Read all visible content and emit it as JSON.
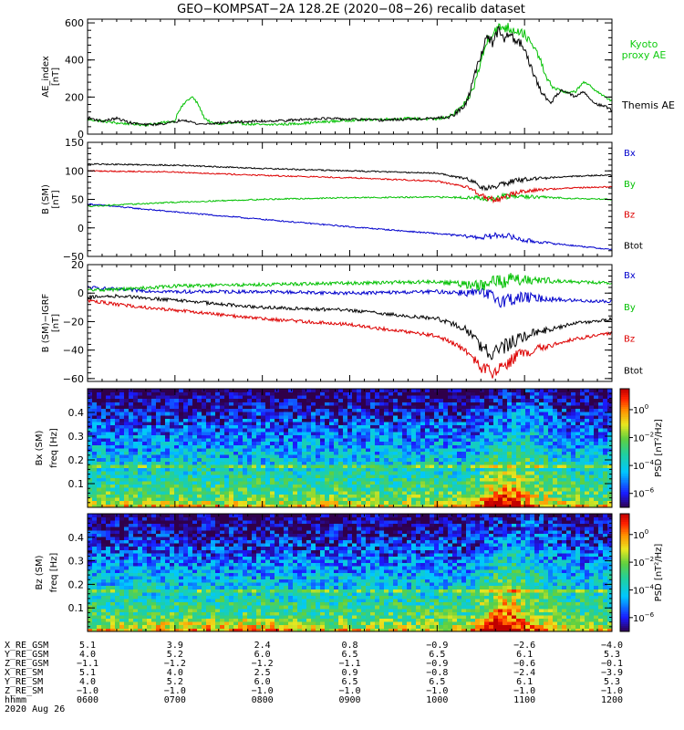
{
  "title": "GEO−KOMPSAT−2A 128.2E (2020−08−26) recalib dataset",
  "colors": {
    "black": "#000000",
    "blue": "#0000cc",
    "green": "#00c000",
    "red": "#dd0000",
    "kyoto": "#11cc11",
    "ephem": "#000000"
  },
  "chart_data": [
    {
      "type": "line",
      "title": "AE index",
      "ylabel": "AE_index [nT]",
      "ylim": [
        0,
        620
      ],
      "yticks": [
        0,
        200,
        400,
        600
      ],
      "xlim": [
        0,
        360
      ],
      "series": [
        {
          "name": "Kyoto proxy AE",
          "label": "Kyoto",
          "label2": "proxy AE",
          "color": "green",
          "x": [
            0,
            10,
            20,
            30,
            40,
            50,
            60,
            62,
            68,
            72,
            76,
            80,
            85,
            90,
            100,
            120,
            140,
            160,
            180,
            200,
            220,
            240,
            250,
            260,
            265,
            270,
            275,
            280,
            285,
            290,
            295,
            300,
            305,
            310,
            315,
            320,
            330,
            335,
            340,
            345,
            350,
            355,
            360
          ],
          "y": [
            80,
            70,
            60,
            55,
            50,
            60,
            70,
            120,
            180,
            200,
            160,
            90,
            60,
            55,
            60,
            50,
            55,
            65,
            75,
            80,
            85,
            80,
            100,
            170,
            250,
            390,
            520,
            560,
            580,
            570,
            560,
            540,
            480,
            420,
            300,
            250,
            220,
            230,
            280,
            260,
            230,
            200,
            180
          ]
        },
        {
          "name": "Themis AE",
          "label": "Themis AE",
          "color": "black",
          "x": [
            0,
            10,
            20,
            30,
            40,
            50,
            60,
            65,
            70,
            75,
            80,
            90,
            100,
            120,
            140,
            160,
            180,
            200,
            220,
            240,
            250,
            260,
            265,
            270,
            275,
            278,
            282,
            285,
            290,
            295,
            300,
            305,
            310,
            315,
            318,
            322,
            325,
            330,
            335,
            340,
            345,
            350,
            355,
            360
          ],
          "y": [
            90,
            70,
            85,
            60,
            50,
            55,
            65,
            80,
            70,
            55,
            55,
            60,
            65,
            70,
            75,
            85,
            80,
            75,
            80,
            85,
            95,
            160,
            300,
            430,
            540,
            480,
            560,
            510,
            540,
            500,
            470,
            350,
            250,
            190,
            170,
            210,
            240,
            220,
            200,
            230,
            190,
            160,
            150,
            130
          ]
        }
      ]
    },
    {
      "type": "line",
      "title": "Magnetic field SM",
      "ylabel": "B (SM) [nT]",
      "ylim": [
        -50,
        150
      ],
      "yticks": [
        -50,
        0,
        50,
        100,
        150
      ],
      "xlim": [
        0,
        360
      ],
      "series": [
        {
          "name": "Bx",
          "color": "blue",
          "x": [
            0,
            60,
            120,
            180,
            240,
            270,
            285,
            300,
            330,
            360
          ],
          "y": [
            42,
            28,
            15,
            2,
            -10,
            -17,
            -12,
            -22,
            -30,
            -38
          ]
        },
        {
          "name": "By",
          "color": "green",
          "x": [
            0,
            60,
            120,
            180,
            240,
            270,
            278,
            285,
            300,
            330,
            360
          ],
          "y": [
            38,
            45,
            50,
            53,
            54,
            53,
            50,
            55,
            55,
            52,
            50
          ]
        },
        {
          "name": "Bz",
          "color": "red",
          "x": [
            0,
            60,
            120,
            180,
            240,
            262,
            272,
            280,
            290,
            300,
            330,
            360
          ],
          "y": [
            100,
            98,
            92,
            88,
            82,
            70,
            55,
            48,
            58,
            65,
            70,
            72
          ]
        },
        {
          "name": "Btot",
          "color": "black",
          "x": [
            0,
            60,
            120,
            180,
            240,
            262,
            272,
            280,
            290,
            300,
            330,
            360
          ],
          "y": [
            112,
            110,
            104,
            100,
            96,
            85,
            70,
            72,
            80,
            85,
            90,
            93
          ]
        }
      ]
    },
    {
      "type": "line",
      "title": "Magnetic field minus IGRF",
      "ylabel": "B (SM)−IGRF [nT]",
      "ylim": [
        -62,
        20
      ],
      "yticks": [
        -60,
        -40,
        -20,
        0,
        20
      ],
      "xlim": [
        0,
        360
      ],
      "series": [
        {
          "name": "Bx",
          "color": "blue",
          "x": [
            0,
            30,
            60,
            120,
            180,
            240,
            270,
            285,
            300,
            330,
            360
          ],
          "y": [
            4,
            2,
            1,
            1,
            0,
            1,
            0,
            -5,
            -3,
            -5,
            -6
          ]
        },
        {
          "name": "By",
          "color": "green",
          "x": [
            0,
            30,
            60,
            120,
            180,
            240,
            270,
            285,
            300,
            330,
            360
          ],
          "y": [
            2,
            3,
            5,
            6,
            7,
            8,
            5,
            9,
            10,
            8,
            7
          ]
        },
        {
          "name": "Bz",
          "color": "red",
          "x": [
            0,
            20,
            60,
            120,
            180,
            240,
            260,
            270,
            278,
            285,
            300,
            330,
            360
          ],
          "y": [
            -5,
            -8,
            -12,
            -18,
            -22,
            -30,
            -40,
            -52,
            -55,
            -50,
            -42,
            -33,
            -28
          ]
        },
        {
          "name": "Btot",
          "color": "black",
          "x": [
            0,
            20,
            60,
            120,
            180,
            240,
            260,
            270,
            278,
            285,
            300,
            330,
            360
          ],
          "y": [
            -3,
            -2,
            -5,
            -10,
            -12,
            -18,
            -25,
            -38,
            -42,
            -38,
            -30,
            -22,
            -18
          ]
        }
      ]
    },
    {
      "type": "heatmap",
      "title": "Bx dynamic spectrum",
      "component": "Bx",
      "ylabel_component": "Bx (SM)",
      "ylabel": "freq [Hz]",
      "ylim": [
        0,
        0.5
      ],
      "yticks": [
        "0.1",
        "0.2",
        "0.3",
        "0.4"
      ],
      "colorbar_label": "PSD [nT²/Hz]",
      "colorbar_ticks": [
        "10",
        "10",
        "10",
        "10"
      ],
      "colorbar_exponents": [
        "0",
        "−2",
        "−4",
        "−6"
      ],
      "colorbar_range": [
        -7,
        1.5
      ]
    },
    {
      "type": "heatmap",
      "title": "Bz dynamic spectrum",
      "component": "Bz",
      "ylabel_component": "Bz (SM)",
      "ylabel": "freq [Hz]",
      "ylim": [
        0,
        0.5
      ],
      "yticks": [
        "0.1",
        "0.2",
        "0.3",
        "0.4"
      ],
      "colorbar_label": "PSD [nT²/Hz]",
      "colorbar_ticks": [
        "10",
        "10",
        "10",
        "10"
      ],
      "colorbar_exponents": [
        "0",
        "−2",
        "−4",
        "−6"
      ],
      "colorbar_range": [
        -7,
        1.5
      ]
    }
  ],
  "right_labels": {
    "panel2": [
      "Bx",
      "By",
      "Bz",
      "Btot"
    ],
    "panel3": [
      "Bx",
      "By",
      "Bz",
      "Btot"
    ]
  },
  "ephemeris": {
    "rows": [
      {
        "label": "X_RE_GSM",
        "values": [
          "5.1",
          "3.9",
          "2.4",
          "0.8",
          "−0.9",
          "−2.6",
          "−4.0"
        ]
      },
      {
        "label": "Y_RE_GSM",
        "values": [
          "4.0",
          "5.2",
          "6.0",
          "6.5",
          "6.5",
          "6.1",
          "5.3"
        ]
      },
      {
        "label": "Z_RE_GSM",
        "values": [
          "−1.1",
          "−1.2",
          "−1.2",
          "−1.1",
          "−0.9",
          "−0.6",
          "−0.1"
        ]
      },
      {
        "label": "X_RE_SM",
        "values": [
          "5.1",
          "4.0",
          "2.5",
          "0.9",
          "−0.8",
          "−2.4",
          "−3.9"
        ]
      },
      {
        "label": "Y_RE_SM",
        "values": [
          "4.0",
          "5.2",
          "6.0",
          "6.5",
          "6.5",
          "6.1",
          "5.3"
        ]
      },
      {
        "label": "Z_RE_SM",
        "values": [
          "−1.0",
          "−1.0",
          "−1.0",
          "−1.0",
          "−1.0",
          "−1.0",
          "−1.0"
        ]
      },
      {
        "label": "hhmm",
        "values": [
          "0600",
          "0700",
          "0800",
          "0900",
          "1000",
          "1100",
          "1200"
        ]
      }
    ],
    "date": "2020 Aug 26"
  }
}
